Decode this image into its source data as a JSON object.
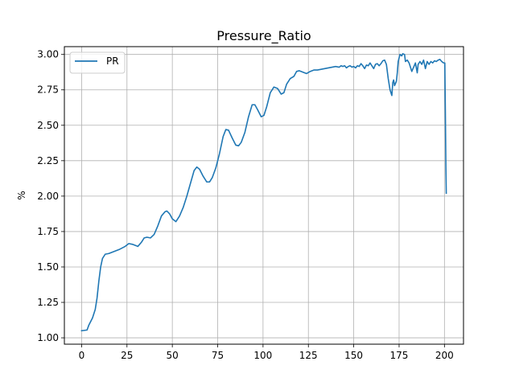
{
  "chart_data": {
    "type": "line",
    "title": "Pressure_Ratio",
    "xlabel": "",
    "ylabel": "%",
    "xlim": [
      -9.5,
      210.5
    ],
    "ylim": [
      0.955,
      3.055
    ],
    "xticks": [
      0,
      25,
      50,
      75,
      100,
      125,
      150,
      175,
      200
    ],
    "yticks": [
      1.0,
      1.25,
      1.5,
      1.75,
      2.0,
      2.25,
      2.5,
      2.75,
      3.0
    ],
    "ytick_labels": [
      "1.00",
      "1.25",
      "1.50",
      "1.75",
      "2.00",
      "2.25",
      "2.50",
      "2.75",
      "3.00"
    ],
    "grid": true,
    "legend_position": "top-left",
    "series": [
      {
        "name": "PR",
        "color": "#1f77b4",
        "points": [
          [
            0,
            1.05
          ],
          [
            3,
            1.055
          ],
          [
            4,
            1.09
          ],
          [
            6,
            1.14
          ],
          [
            7.5,
            1.2
          ],
          [
            8.5,
            1.28
          ],
          [
            9.5,
            1.4
          ],
          [
            10.5,
            1.5
          ],
          [
            11.5,
            1.56
          ],
          [
            13,
            1.59
          ],
          [
            15,
            1.595
          ],
          [
            18,
            1.61
          ],
          [
            21,
            1.625
          ],
          [
            24,
            1.645
          ],
          [
            26,
            1.665
          ],
          [
            28,
            1.66
          ],
          [
            31,
            1.645
          ],
          [
            33,
            1.675
          ],
          [
            34.5,
            1.705
          ],
          [
            36,
            1.71
          ],
          [
            38,
            1.705
          ],
          [
            40,
            1.73
          ],
          [
            42,
            1.79
          ],
          [
            44,
            1.86
          ],
          [
            46,
            1.89
          ],
          [
            47,
            1.895
          ],
          [
            48.5,
            1.875
          ],
          [
            50,
            1.84
          ],
          [
            52,
            1.82
          ],
          [
            54,
            1.86
          ],
          [
            56,
            1.92
          ],
          [
            58,
            2
          ],
          [
            60,
            2.09
          ],
          [
            62,
            2.18
          ],
          [
            63.5,
            2.205
          ],
          [
            65,
            2.19
          ],
          [
            67,
            2.14
          ],
          [
            69,
            2.1
          ],
          [
            70.5,
            2.1
          ],
          [
            72,
            2.13
          ],
          [
            74,
            2.2
          ],
          [
            76,
            2.3
          ],
          [
            78,
            2.42
          ],
          [
            79.5,
            2.47
          ],
          [
            81,
            2.465
          ],
          [
            83,
            2.41
          ],
          [
            85,
            2.36
          ],
          [
            86.5,
            2.355
          ],
          [
            88,
            2.38
          ],
          [
            90,
            2.45
          ],
          [
            92,
            2.56
          ],
          [
            94,
            2.645
          ],
          [
            95.5,
            2.645
          ],
          [
            97,
            2.61
          ],
          [
            99,
            2.56
          ],
          [
            100.5,
            2.57
          ],
          [
            102,
            2.63
          ],
          [
            104,
            2.73
          ],
          [
            106,
            2.77
          ],
          [
            108,
            2.76
          ],
          [
            110,
            2.72
          ],
          [
            111.5,
            2.73
          ],
          [
            113,
            2.79
          ],
          [
            115,
            2.83
          ],
          [
            117,
            2.845
          ],
          [
            118.5,
            2.88
          ],
          [
            120,
            2.885
          ],
          [
            122,
            2.875
          ],
          [
            124,
            2.865
          ],
          [
            126,
            2.88
          ],
          [
            128,
            2.89
          ],
          [
            130,
            2.89
          ],
          [
            132,
            2.895
          ],
          [
            134,
            2.9
          ],
          [
            136,
            2.905
          ],
          [
            138,
            2.91
          ],
          [
            140,
            2.915
          ],
          [
            142,
            2.91
          ],
          [
            143,
            2.92
          ],
          [
            144,
            2.915
          ],
          [
            145,
            2.92
          ],
          [
            146,
            2.905
          ],
          [
            147,
            2.915
          ],
          [
            148,
            2.92
          ],
          [
            149,
            2.91
          ],
          [
            150,
            2.915
          ],
          [
            151,
            2.905
          ],
          [
            152,
            2.92
          ],
          [
            153,
            2.915
          ],
          [
            154,
            2.935
          ],
          [
            155,
            2.92
          ],
          [
            156,
            2.9
          ],
          [
            157,
            2.925
          ],
          [
            158,
            2.92
          ],
          [
            159,
            2.94
          ],
          [
            160,
            2.92
          ],
          [
            161,
            2.9
          ],
          [
            162,
            2.93
          ],
          [
            163,
            2.935
          ],
          [
            164,
            2.92
          ],
          [
            165,
            2.935
          ],
          [
            166,
            2.955
          ],
          [
            167,
            2.96
          ],
          [
            168,
            2.93
          ],
          [
            169,
            2.83
          ],
          [
            170,
            2.75
          ],
          [
            171,
            2.71
          ],
          [
            171.5,
            2.8
          ],
          [
            172,
            2.82
          ],
          [
            172.5,
            2.78
          ],
          [
            173.5,
            2.81
          ],
          [
            174,
            2.87
          ],
          [
            174.5,
            2.95
          ],
          [
            175.5,
            3.0
          ],
          [
            176.5,
            2.99
          ],
          [
            177,
            3.005
          ],
          [
            178,
            3.0
          ],
          [
            178.5,
            2.95
          ],
          [
            179.5,
            2.96
          ],
          [
            180.5,
            2.94
          ],
          [
            181,
            2.92
          ],
          [
            182,
            2.88
          ],
          [
            183,
            2.91
          ],
          [
            184,
            2.94
          ],
          [
            185,
            2.87
          ],
          [
            185.5,
            2.93
          ],
          [
            186.5,
            2.95
          ],
          [
            187.5,
            2.93
          ],
          [
            188.5,
            2.96
          ],
          [
            189.5,
            2.9
          ],
          [
            190.5,
            2.95
          ],
          [
            191.5,
            2.93
          ],
          [
            192.5,
            2.95
          ],
          [
            193.5,
            2.94
          ],
          [
            194.5,
            2.955
          ],
          [
            195.5,
            2.95
          ],
          [
            196.5,
            2.96
          ],
          [
            197.5,
            2.965
          ],
          [
            198.5,
            2.95
          ],
          [
            199.5,
            2.94
          ],
          [
            200.2,
            2.94
          ],
          [
            200.5,
            2.6
          ],
          [
            200.8,
            2.2
          ],
          [
            201,
            2.02
          ]
        ]
      }
    ]
  }
}
